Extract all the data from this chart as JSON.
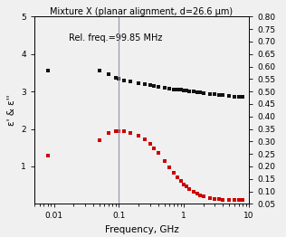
{
  "title": "Mixture X (planar alignment, d=26.6 μm)",
  "xlabel": "Frequency, GHz",
  "ylabel_left": "ε' & ε''",
  "vline_freq": 0.09985,
  "vline_label": "Rel. freq.=99.85 MHz",
  "vline_color": "#9999bb",
  "ylim_left": [
    0,
    5
  ],
  "ylim_right": [
    0.05,
    0.8
  ],
  "black_data": [
    [
      0.008,
      3.55
    ],
    [
      0.05,
      3.55
    ],
    [
      0.07,
      3.47
    ],
    [
      0.09,
      3.37
    ],
    [
      0.1,
      3.35
    ],
    [
      0.12,
      3.3
    ],
    [
      0.15,
      3.27
    ],
    [
      0.2,
      3.22
    ],
    [
      0.25,
      3.19
    ],
    [
      0.3,
      3.17
    ],
    [
      0.35,
      3.15
    ],
    [
      0.4,
      3.13
    ],
    [
      0.5,
      3.1
    ],
    [
      0.6,
      3.08
    ],
    [
      0.7,
      3.06
    ],
    [
      0.8,
      3.05
    ],
    [
      0.9,
      3.04
    ],
    [
      1.0,
      3.03
    ],
    [
      1.1,
      3.02
    ],
    [
      1.2,
      3.01
    ],
    [
      1.4,
      3.0
    ],
    [
      1.6,
      2.99
    ],
    [
      1.8,
      2.97
    ],
    [
      2.0,
      2.96
    ],
    [
      2.5,
      2.94
    ],
    [
      3.0,
      2.92
    ],
    [
      3.5,
      2.91
    ],
    [
      4.0,
      2.9
    ],
    [
      5.0,
      2.88
    ],
    [
      6.0,
      2.87
    ],
    [
      7.0,
      2.86
    ],
    [
      8.0,
      2.85
    ]
  ],
  "red_data": [
    [
      0.008,
      1.28
    ],
    [
      0.05,
      1.7
    ],
    [
      0.07,
      1.88
    ],
    [
      0.09,
      1.93
    ],
    [
      0.1,
      1.95
    ],
    [
      0.12,
      1.93
    ],
    [
      0.15,
      1.88
    ],
    [
      0.2,
      1.82
    ],
    [
      0.25,
      1.72
    ],
    [
      0.3,
      1.6
    ],
    [
      0.35,
      1.48
    ],
    [
      0.4,
      1.36
    ],
    [
      0.5,
      1.15
    ],
    [
      0.6,
      0.97
    ],
    [
      0.7,
      0.82
    ],
    [
      0.8,
      0.7
    ],
    [
      0.9,
      0.6
    ],
    [
      1.0,
      0.52
    ],
    [
      1.1,
      0.46
    ],
    [
      1.2,
      0.4
    ],
    [
      1.4,
      0.33
    ],
    [
      1.6,
      0.27
    ],
    [
      1.8,
      0.23
    ],
    [
      2.0,
      0.2
    ],
    [
      2.5,
      0.16
    ],
    [
      3.0,
      0.14
    ],
    [
      3.5,
      0.125
    ],
    [
      4.0,
      0.115
    ],
    [
      5.0,
      0.105
    ],
    [
      6.0,
      0.1
    ],
    [
      7.0,
      0.098
    ],
    [
      8.0,
      0.098
    ]
  ],
  "black_color": "#111111",
  "red_color": "#cc0000",
  "marker": "s",
  "markersize": 3.0,
  "title_fontsize": 7.0,
  "label_fontsize": 7.5,
  "tick_fontsize": 6.5,
  "right_yticks": [
    0.05,
    0.1,
    0.15,
    0.2,
    0.25,
    0.3,
    0.35,
    0.4,
    0.45,
    0.5,
    0.55,
    0.6,
    0.65,
    0.7,
    0.75,
    0.8
  ],
  "left_yticks": [
    1,
    2,
    3,
    4,
    5
  ],
  "bg_color": "#f0f0f0"
}
